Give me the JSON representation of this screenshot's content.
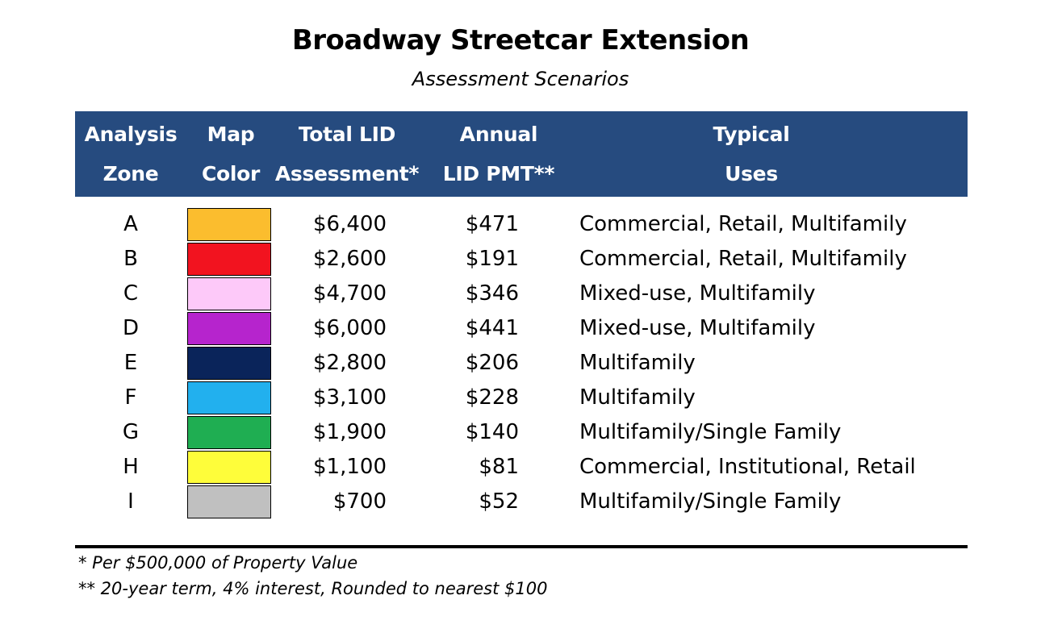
{
  "title": "Broadway Streetcar Extension",
  "subtitle": "Assessment Scenarios",
  "headers": {
    "zone": [
      "Analysis",
      "Zone"
    ],
    "color": [
      "Map",
      "Color"
    ],
    "total": [
      "Total LID",
      "Assessment*"
    ],
    "pmt": [
      "Annual",
      "LID PMT**"
    ],
    "uses": [
      "Typical",
      "Uses"
    ]
  },
  "rows": [
    {
      "zone": "A",
      "color": "#fbbd2e",
      "total": "$6,400",
      "pmt": "$471",
      "uses": "Commercial, Retail, Multifamily"
    },
    {
      "zone": "B",
      "color": "#f2131f",
      "total": "$2,600",
      "pmt": "$191",
      "uses": "Commercial, Retail, Multifamily"
    },
    {
      "zone": "C",
      "color": "#fdc9f9",
      "total": "$4,700",
      "pmt": "$346",
      "uses": "Mixed-use, Multifamily"
    },
    {
      "zone": "D",
      "color": "#b624cd",
      "total": "$6,000",
      "pmt": "$441",
      "uses": "Mixed-use, Multifamily"
    },
    {
      "zone": "E",
      "color": "#0a245a",
      "total": "$2,800",
      "pmt": "$206",
      "uses": "Multifamily"
    },
    {
      "zone": "F",
      "color": "#22b0ee",
      "total": "$3,100",
      "pmt": "$228",
      "uses": "Multifamily"
    },
    {
      "zone": "G",
      "color": "#1fae52",
      "total": "$1,900",
      "pmt": "$140",
      "uses": "Multifamily/Single Family"
    },
    {
      "zone": "H",
      "color": "#fefd3a",
      "total": "$1,100",
      "pmt": "$81",
      "uses": "Commercial, Institutional, Retail"
    },
    {
      "zone": "I",
      "color": "#c0c0c0",
      "total": "$700",
      "pmt": "$52",
      "uses": "Multifamily/Single Family"
    }
  ],
  "footnotes": [
    "* Per $500,000 of Property Value",
    "** 20-year term, 4% interest, Rounded to nearest $100"
  ]
}
